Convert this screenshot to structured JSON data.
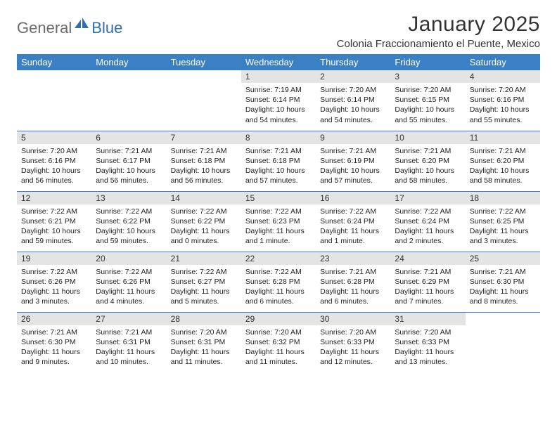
{
  "logo": {
    "part1": "General",
    "part2": "Blue"
  },
  "title": "January 2025",
  "location": "Colonia Fraccionamiento el Puente, Mexico",
  "colors": {
    "header_bg": "#3b7fc4",
    "header_text": "#ffffff",
    "daynum_bg": "#e4e4e4",
    "rule": "#3b7fc4",
    "logo_gray": "#6b6b6b",
    "logo_blue": "#2f6fb0"
  },
  "weekdays": [
    "Sunday",
    "Monday",
    "Tuesday",
    "Wednesday",
    "Thursday",
    "Friday",
    "Saturday"
  ],
  "weeks": [
    [
      null,
      null,
      null,
      {
        "n": "1",
        "sunrise": "7:19 AM",
        "sunset": "6:14 PM",
        "daylight": "10 hours and 54 minutes."
      },
      {
        "n": "2",
        "sunrise": "7:20 AM",
        "sunset": "6:14 PM",
        "daylight": "10 hours and 54 minutes."
      },
      {
        "n": "3",
        "sunrise": "7:20 AM",
        "sunset": "6:15 PM",
        "daylight": "10 hours and 55 minutes."
      },
      {
        "n": "4",
        "sunrise": "7:20 AM",
        "sunset": "6:16 PM",
        "daylight": "10 hours and 55 minutes."
      }
    ],
    [
      {
        "n": "5",
        "sunrise": "7:20 AM",
        "sunset": "6:16 PM",
        "daylight": "10 hours and 56 minutes."
      },
      {
        "n": "6",
        "sunrise": "7:21 AM",
        "sunset": "6:17 PM",
        "daylight": "10 hours and 56 minutes."
      },
      {
        "n": "7",
        "sunrise": "7:21 AM",
        "sunset": "6:18 PM",
        "daylight": "10 hours and 56 minutes."
      },
      {
        "n": "8",
        "sunrise": "7:21 AM",
        "sunset": "6:18 PM",
        "daylight": "10 hours and 57 minutes."
      },
      {
        "n": "9",
        "sunrise": "7:21 AM",
        "sunset": "6:19 PM",
        "daylight": "10 hours and 57 minutes."
      },
      {
        "n": "10",
        "sunrise": "7:21 AM",
        "sunset": "6:20 PM",
        "daylight": "10 hours and 58 minutes."
      },
      {
        "n": "11",
        "sunrise": "7:21 AM",
        "sunset": "6:20 PM",
        "daylight": "10 hours and 58 minutes."
      }
    ],
    [
      {
        "n": "12",
        "sunrise": "7:22 AM",
        "sunset": "6:21 PM",
        "daylight": "10 hours and 59 minutes."
      },
      {
        "n": "13",
        "sunrise": "7:22 AM",
        "sunset": "6:22 PM",
        "daylight": "10 hours and 59 minutes."
      },
      {
        "n": "14",
        "sunrise": "7:22 AM",
        "sunset": "6:22 PM",
        "daylight": "11 hours and 0 minutes."
      },
      {
        "n": "15",
        "sunrise": "7:22 AM",
        "sunset": "6:23 PM",
        "daylight": "11 hours and 1 minute."
      },
      {
        "n": "16",
        "sunrise": "7:22 AM",
        "sunset": "6:24 PM",
        "daylight": "11 hours and 1 minute."
      },
      {
        "n": "17",
        "sunrise": "7:22 AM",
        "sunset": "6:24 PM",
        "daylight": "11 hours and 2 minutes."
      },
      {
        "n": "18",
        "sunrise": "7:22 AM",
        "sunset": "6:25 PM",
        "daylight": "11 hours and 3 minutes."
      }
    ],
    [
      {
        "n": "19",
        "sunrise": "7:22 AM",
        "sunset": "6:26 PM",
        "daylight": "11 hours and 3 minutes."
      },
      {
        "n": "20",
        "sunrise": "7:22 AM",
        "sunset": "6:26 PM",
        "daylight": "11 hours and 4 minutes."
      },
      {
        "n": "21",
        "sunrise": "7:22 AM",
        "sunset": "6:27 PM",
        "daylight": "11 hours and 5 minutes."
      },
      {
        "n": "22",
        "sunrise": "7:22 AM",
        "sunset": "6:28 PM",
        "daylight": "11 hours and 6 minutes."
      },
      {
        "n": "23",
        "sunrise": "7:21 AM",
        "sunset": "6:28 PM",
        "daylight": "11 hours and 6 minutes."
      },
      {
        "n": "24",
        "sunrise": "7:21 AM",
        "sunset": "6:29 PM",
        "daylight": "11 hours and 7 minutes."
      },
      {
        "n": "25",
        "sunrise": "7:21 AM",
        "sunset": "6:30 PM",
        "daylight": "11 hours and 8 minutes."
      }
    ],
    [
      {
        "n": "26",
        "sunrise": "7:21 AM",
        "sunset": "6:30 PM",
        "daylight": "11 hours and 9 minutes."
      },
      {
        "n": "27",
        "sunrise": "7:21 AM",
        "sunset": "6:31 PM",
        "daylight": "11 hours and 10 minutes."
      },
      {
        "n": "28",
        "sunrise": "7:20 AM",
        "sunset": "6:31 PM",
        "daylight": "11 hours and 11 minutes."
      },
      {
        "n": "29",
        "sunrise": "7:20 AM",
        "sunset": "6:32 PM",
        "daylight": "11 hours and 11 minutes."
      },
      {
        "n": "30",
        "sunrise": "7:20 AM",
        "sunset": "6:33 PM",
        "daylight": "11 hours and 12 minutes."
      },
      {
        "n": "31",
        "sunrise": "7:20 AM",
        "sunset": "6:33 PM",
        "daylight": "11 hours and 13 minutes."
      },
      null
    ]
  ],
  "labels": {
    "sunrise": "Sunrise:",
    "sunset": "Sunset:",
    "daylight": "Daylight:"
  }
}
